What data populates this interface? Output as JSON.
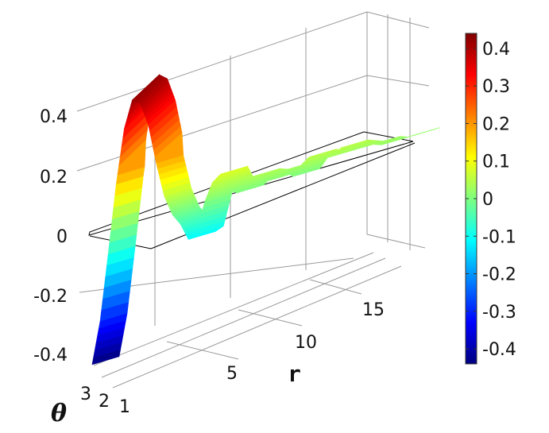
{
  "chart_data": {
    "type": "surface",
    "z_ticks": [
      "0.4",
      "0.2",
      "0",
      "-0.2",
      "-0.4"
    ],
    "z_values": [
      0.4,
      0.2,
      0,
      -0.2,
      -0.4
    ],
    "r_ticks": [
      "5",
      "10",
      "15"
    ],
    "r_values": [
      5,
      10,
      15
    ],
    "theta_ticks": [
      "3",
      "2",
      "1"
    ],
    "theta_values": [
      3,
      2,
      1
    ],
    "xlabel": "r",
    "ylabel": "θ",
    "colorbar": {
      "ticks": [
        "0.4",
        "0.3",
        "0.2",
        "0.1",
        "0",
        "-0.1",
        "-0.2",
        "-0.3",
        "-0.4"
      ],
      "values": [
        0.4,
        0.3,
        0.2,
        0.1,
        0,
        -0.1,
        -0.2,
        -0.3,
        -0.4
      ],
      "range": [
        -0.44,
        0.44
      ],
      "colormap": "jet"
    },
    "surface_profile": {
      "r": [
        0,
        0.5,
        1,
        1.5,
        2,
        2.5,
        3,
        3.5,
        4,
        4.5,
        5,
        5.5,
        6,
        6.5,
        7,
        7.5,
        8,
        8.5,
        9,
        9.5,
        10,
        10.5,
        11,
        11.5,
        12,
        12.5,
        13,
        13.5,
        14,
        14.5,
        15,
        15.5,
        16,
        16.5,
        17,
        17.5,
        18,
        18.5,
        19,
        19.5,
        20
      ],
      "z": [
        -0.44,
        -0.3,
        -0.08,
        0.15,
        0.33,
        0.42,
        0.4,
        0.32,
        0.18,
        0.06,
        -0.01,
        -0.05,
        -0.11,
        -0.1,
        0.0,
        0.06,
        0.08,
        0.02,
        0.0,
        0.02,
        0.04,
        0.03,
        0.01,
        0.02,
        0.03,
        0.0,
        0.03,
        0.05,
        0.04,
        0.03,
        0.03,
        0.05,
        0.04,
        0.03,
        0.03,
        0.03,
        0.02,
        0.02,
        0.02,
        0.02,
        0.02
      ]
    },
    "grid": true
  },
  "colors": {
    "axis": "#777777",
    "grid": "#9a9a9a",
    "outline": "#000000"
  }
}
